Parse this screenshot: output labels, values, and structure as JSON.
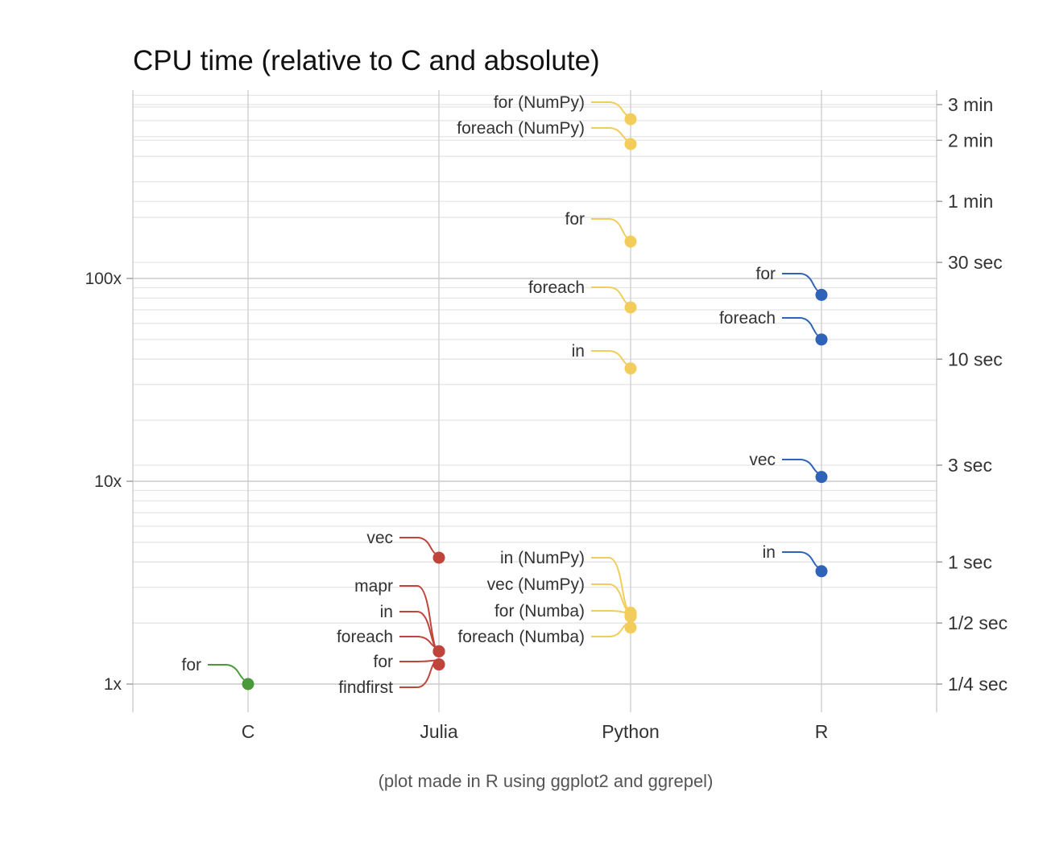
{
  "chart_data": {
    "type": "scatter",
    "title": "CPU time (relative to C and absolute)",
    "caption": "(plot made in R using ggplot2 and ggrepel)",
    "categories": [
      "C",
      "Julia",
      "Python",
      "R"
    ],
    "y_scale": "log",
    "ylim": [
      0.75,
      800
    ],
    "grid": true,
    "colors": {
      "C": "#4a9a3a",
      "Julia": "#c0443a",
      "Python": "#f2cd5c",
      "R": "#2f63b8"
    },
    "left_ticks": [
      {
        "label": "1x",
        "value": 1
      },
      {
        "label": "10x",
        "value": 10
      },
      {
        "label": "100x",
        "value": 100
      }
    ],
    "right_ticks": [
      {
        "label": "1/4 sec",
        "seconds": 0.25
      },
      {
        "label": "1/2 sec",
        "seconds": 0.5
      },
      {
        "label": "1 sec",
        "seconds": 1
      },
      {
        "label": "3 sec",
        "seconds": 3
      },
      {
        "label": "10 sec",
        "seconds": 10
      },
      {
        "label": "30 sec",
        "seconds": 30
      },
      {
        "label": "1 min",
        "seconds": 60
      },
      {
        "label": "2 min",
        "seconds": 120
      },
      {
        "label": "3 min",
        "seconds": 180
      }
    ],
    "points": [
      {
        "language": "C",
        "label": "for",
        "value": 1.0
      },
      {
        "language": "Julia",
        "label": "findfirst",
        "value": 1.25
      },
      {
        "language": "Julia",
        "label": "for",
        "value": 1.25
      },
      {
        "language": "Julia",
        "label": "foreach",
        "value": 1.45
      },
      {
        "language": "Julia",
        "label": "in",
        "value": 1.45
      },
      {
        "language": "Julia",
        "label": "mapr",
        "value": 1.45
      },
      {
        "language": "Julia",
        "label": "vec",
        "value": 4.2
      },
      {
        "language": "Python",
        "label": "foreach (Numba)",
        "value": 1.9
      },
      {
        "language": "Python",
        "label": "for (Numba)",
        "value": 2.15
      },
      {
        "language": "Python",
        "label": "vec (NumPy)",
        "value": 2.2
      },
      {
        "language": "Python",
        "label": "in (NumPy)",
        "value": 2.25
      },
      {
        "language": "Python",
        "label": "in",
        "value": 36
      },
      {
        "language": "Python",
        "label": "foreach",
        "value": 72
      },
      {
        "language": "Python",
        "label": "for",
        "value": 152
      },
      {
        "language": "Python",
        "label": "foreach (NumPy)",
        "value": 460
      },
      {
        "language": "Python",
        "label": "for (NumPy)",
        "value": 610
      },
      {
        "language": "R",
        "label": "in",
        "value": 3.6
      },
      {
        "language": "R",
        "label": "vec",
        "value": 10.5
      },
      {
        "language": "R",
        "label": "foreach",
        "value": 50
      },
      {
        "language": "R",
        "label": "for",
        "value": 83
      }
    ]
  }
}
